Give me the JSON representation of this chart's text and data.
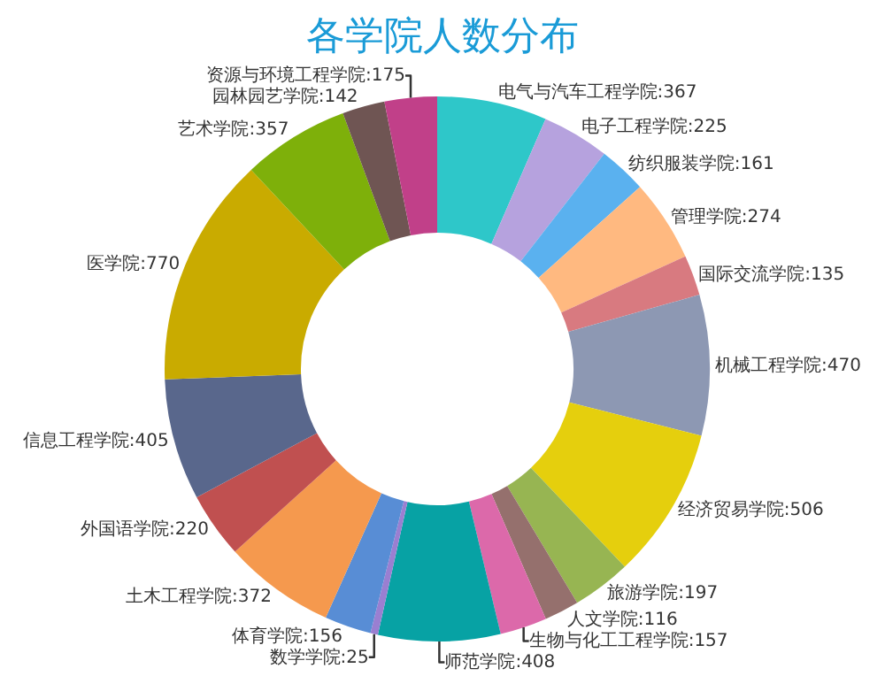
{
  "chart_data": {
    "type": "donut",
    "title": "各学院人数分布",
    "categories": [
      "电气与汽车工程学院:367",
      "电子工程学院:225",
      "纺织服装学院:161",
      "管理学院:274",
      "国际交流学院:135",
      "机械工程学院:470",
      "经济贸易学院:506",
      "旅游学院:197",
      "人文学院:116",
      "生物与化工工程学院:157",
      "师范学院:408",
      "数学学院:25",
      "体育学院:156",
      "土木工程学院:372",
      "外国语学院:220",
      "信息工程学院:405",
      "医学院:770",
      "艺术学院:357",
      "园林园艺学院:142",
      "资源与环境工程学院:175"
    ],
    "values": [
      367,
      225,
      161,
      274,
      135,
      470,
      506,
      197,
      116,
      157,
      408,
      25,
      156,
      372,
      220,
      405,
      770,
      357,
      142,
      175
    ],
    "colors": [
      "#2ec7c9",
      "#b6a2de",
      "#5ab1ef",
      "#ffb980",
      "#d87a80",
      "#8d98b3",
      "#e5cf0d",
      "#97b552",
      "#95706d",
      "#dc69aa",
      "#07a2a4",
      "#9a7fd1",
      "#588dd5",
      "#f5994e",
      "#c05050",
      "#59678c",
      "#c9ab00",
      "#7eb00a",
      "#6f5553",
      "#c14089"
    ],
    "legend": false
  }
}
